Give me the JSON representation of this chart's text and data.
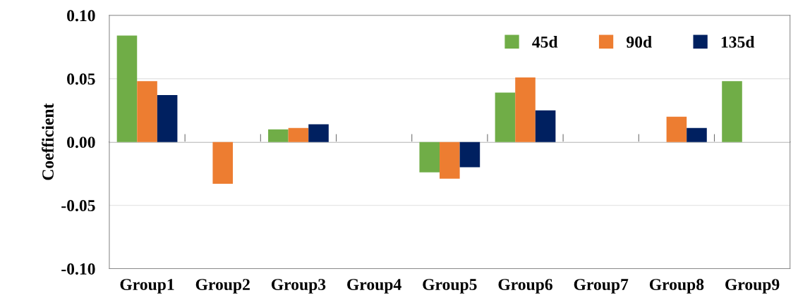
{
  "chart_data": {
    "type": "bar",
    "ylabel": "Coefficient",
    "categories": [
      "Group1",
      "Group2",
      "Group3",
      "Group4",
      "Group5",
      "Group6",
      "Group7",
      "Group8",
      "Group9"
    ],
    "series": [
      {
        "name": "45d",
        "color": "#70ad47",
        "values": [
          0.084,
          null,
          0.01,
          null,
          -0.024,
          0.039,
          null,
          null,
          0.048
        ]
      },
      {
        "name": "90d",
        "color": "#ed7d31",
        "values": [
          0.048,
          -0.033,
          0.011,
          null,
          -0.029,
          0.051,
          null,
          0.02,
          null
        ]
      },
      {
        "name": "135d",
        "color": "#002060",
        "values": [
          0.037,
          null,
          0.014,
          null,
          -0.02,
          0.025,
          null,
          0.011,
          null
        ]
      }
    ],
    "ylim": [
      -0.1,
      0.1
    ],
    "yticks": [
      {
        "value": -0.1,
        "label": "-0.10"
      },
      {
        "value": -0.05,
        "label": "-0.05"
      },
      {
        "value": 0,
        "label": "0.00"
      },
      {
        "value": 0.05,
        "label": "0.05"
      },
      {
        "value": 0.1,
        "label": "0.10"
      }
    ],
    "grid": "y",
    "legend": "top right"
  }
}
